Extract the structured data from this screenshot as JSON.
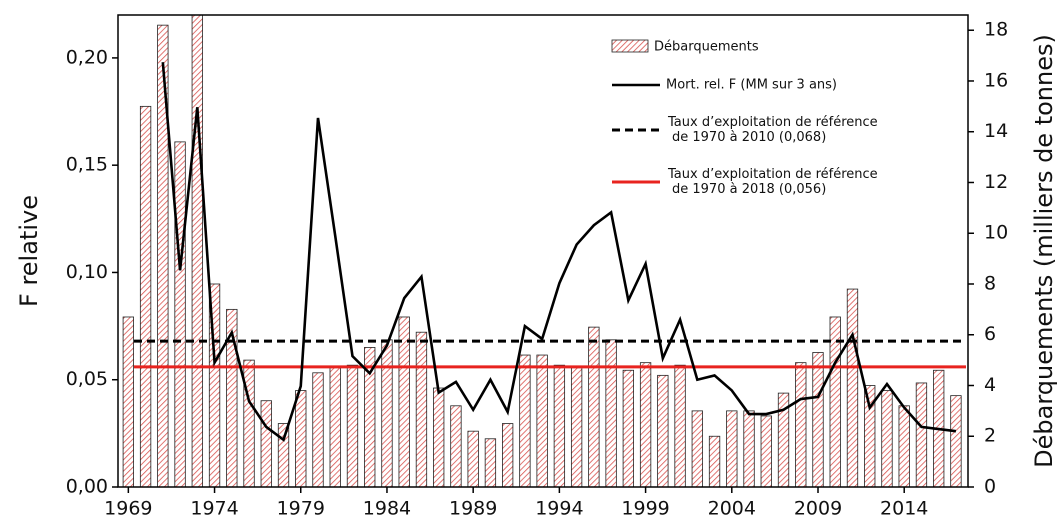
{
  "chart_data": {
    "type": "bar-line",
    "y_label": "F relative",
    "y2_label": "Débarquements (milliers de tonnes)",
    "xlim": [
      1968.4,
      2017.7
    ],
    "xticks": [
      1969,
      1974,
      1979,
      1984,
      1989,
      1994,
      1999,
      2004,
      2009,
      2014
    ],
    "ylim": [
      0,
      0.22
    ],
    "yticks": [
      {
        "value": 0,
        "label": "0,00"
      },
      {
        "value": 0.05,
        "label": "0,05"
      },
      {
        "value": 0.1,
        "label": "0,10"
      },
      {
        "value": 0.15,
        "label": "0,15"
      },
      {
        "value": 0.2,
        "label": "0,20"
      }
    ],
    "y2lim": [
      0,
      18.6
    ],
    "y2ticks": [
      0,
      2,
      4,
      6,
      8,
      10,
      12,
      14,
      16,
      18
    ],
    "bars": {
      "name": "Débarquements",
      "color": "#d9534f",
      "axis": "y2",
      "x": [
        1969,
        1970,
        1971,
        1972,
        1973,
        1974,
        1975,
        1976,
        1977,
        1978,
        1979,
        1980,
        1981,
        1982,
        1983,
        1984,
        1985,
        1986,
        1987,
        1988,
        1989,
        1990,
        1991,
        1992,
        1993,
        1994,
        1995,
        1996,
        1997,
        1998,
        1999,
        2000,
        2001,
        2002,
        2003,
        2004,
        2005,
        2006,
        2007,
        2008,
        2009,
        2010,
        2011,
        2012,
        2013,
        2014,
        2015,
        2016,
        2017
      ],
      "values": [
        6.7,
        15.0,
        18.2,
        13.6,
        19.0,
        8.0,
        7.0,
        5.0,
        3.4,
        2.5,
        3.8,
        4.5,
        4.7,
        4.8,
        5.5,
        5.8,
        6.7,
        6.1,
        3.9,
        3.2,
        2.2,
        1.9,
        2.5,
        5.2,
        5.2,
        4.8,
        4.7,
        6.3,
        5.8,
        4.6,
        4.9,
        4.4,
        4.8,
        3.0,
        2.0,
        3.0,
        3.0,
        2.8,
        3.7,
        4.9,
        5.3,
        6.7,
        7.8,
        4.0,
        3.8,
        3.2,
        4.1,
        4.6,
        3.6
      ]
    },
    "series": [
      {
        "name": "Mort. rel. F (MM sur 3 ans)",
        "color": "#000000",
        "x": [
          1971,
          1972,
          1973,
          1974,
          1975,
          1976,
          1977,
          1978,
          1979,
          1980,
          1981,
          1982,
          1983,
          1984,
          1985,
          1986,
          1987,
          1988,
          1989,
          1990,
          1991,
          1992,
          1993,
          1994,
          1995,
          1996,
          1997,
          1998,
          1999,
          2000,
          2001,
          2002,
          2003,
          2004,
          2005,
          2006,
          2007,
          2008,
          2009,
          2010,
          2011,
          2012,
          2013,
          2014,
          2015,
          2016,
          2017
        ],
        "values": [
          0.198,
          0.101,
          0.177,
          0.058,
          0.072,
          0.04,
          0.028,
          0.022,
          0.047,
          0.172,
          0.117,
          0.061,
          0.053,
          0.066,
          0.088,
          0.098,
          0.044,
          0.049,
          0.036,
          0.05,
          0.035,
          0.075,
          0.069,
          0.095,
          0.113,
          0.122,
          0.128,
          0.087,
          0.104,
          0.06,
          0.078,
          0.05,
          0.052,
          0.045,
          0.034,
          0.034,
          0.036,
          0.041,
          0.042,
          0.058,
          0.071,
          0.037,
          0.048,
          0.037,
          0.028,
          0.027,
          0.026
        ]
      }
    ],
    "reference_lines": [
      {
        "name": "Taux d’exploitation de référence\nde 1970 à 2010 (0,068)",
        "value": 0.068,
        "color": "#000000",
        "dashed": true
      },
      {
        "name": "Taux d’exploitation de référence\nde 1970 à 2018 (0,056)",
        "value": 0.056,
        "color": "#e8231f",
        "dashed": false
      }
    ]
  }
}
